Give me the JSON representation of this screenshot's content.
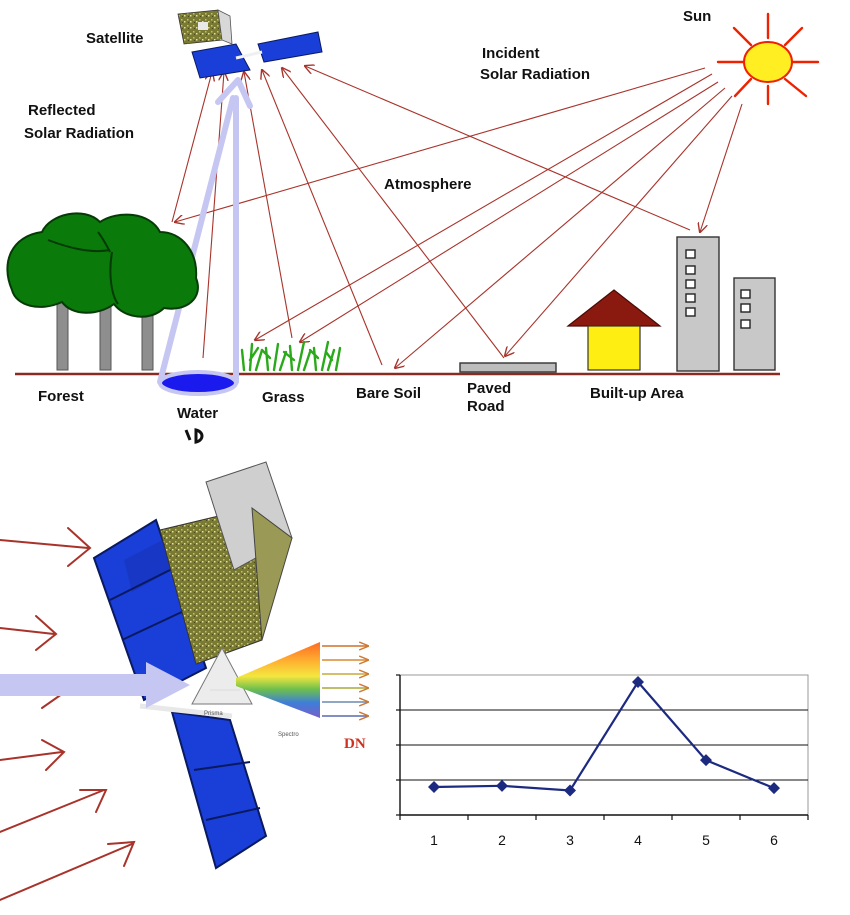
{
  "labels": {
    "satellite": "Satellite",
    "sun": "Sun",
    "incident_line1": "Incident",
    "incident_line2": "Solar Radiation",
    "reflected_line1": "Reflected",
    "reflected_line2": "Solar Radiation",
    "atmosphere": "Atmosphere",
    "forest": "Forest",
    "water": "Water",
    "grass": "Grass",
    "bare_soil": "Bare Soil",
    "paved_line1": "Paved",
    "paved_line2": "Road",
    "builtup": "Built-up Area",
    "prism": "Prisma",
    "spectro": "Spectro"
  },
  "colors": {
    "ray": "#a8332b",
    "highlight_arrow": "#c6c6f2",
    "tree_green": "#0a7a0a",
    "sun_yellow": "#ffee22",
    "sun_ray": "#ee2200",
    "water_blue": "#1a1aee",
    "panel_blue": "#1a3ed8",
    "chart_line": "#1c2a80"
  },
  "chart_data": {
    "type": "line",
    "categories": [
      "1",
      "2",
      "3",
      "4",
      "5",
      "6"
    ],
    "series": [
      {
        "values": [
          1.2,
          1.25,
          1.05,
          5.7,
          2.35,
          1.15
        ]
      }
    ],
    "ylabel": "DN",
    "xlabel": "",
    "ylim": [
      0,
      6
    ],
    "grid": true
  }
}
